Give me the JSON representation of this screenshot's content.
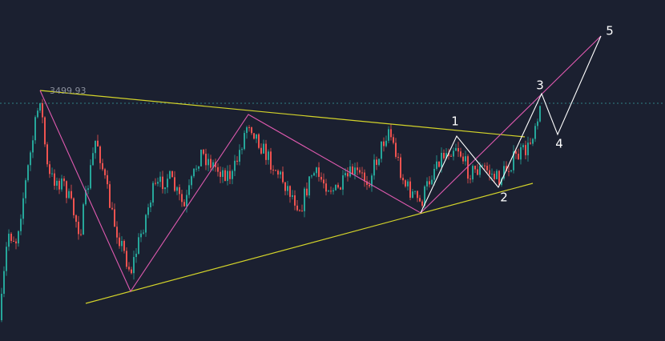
{
  "annotations": {
    "price_label": "3499.93",
    "wave_labels": [
      "1",
      "2",
      "3",
      "4",
      "5"
    ]
  }
}
